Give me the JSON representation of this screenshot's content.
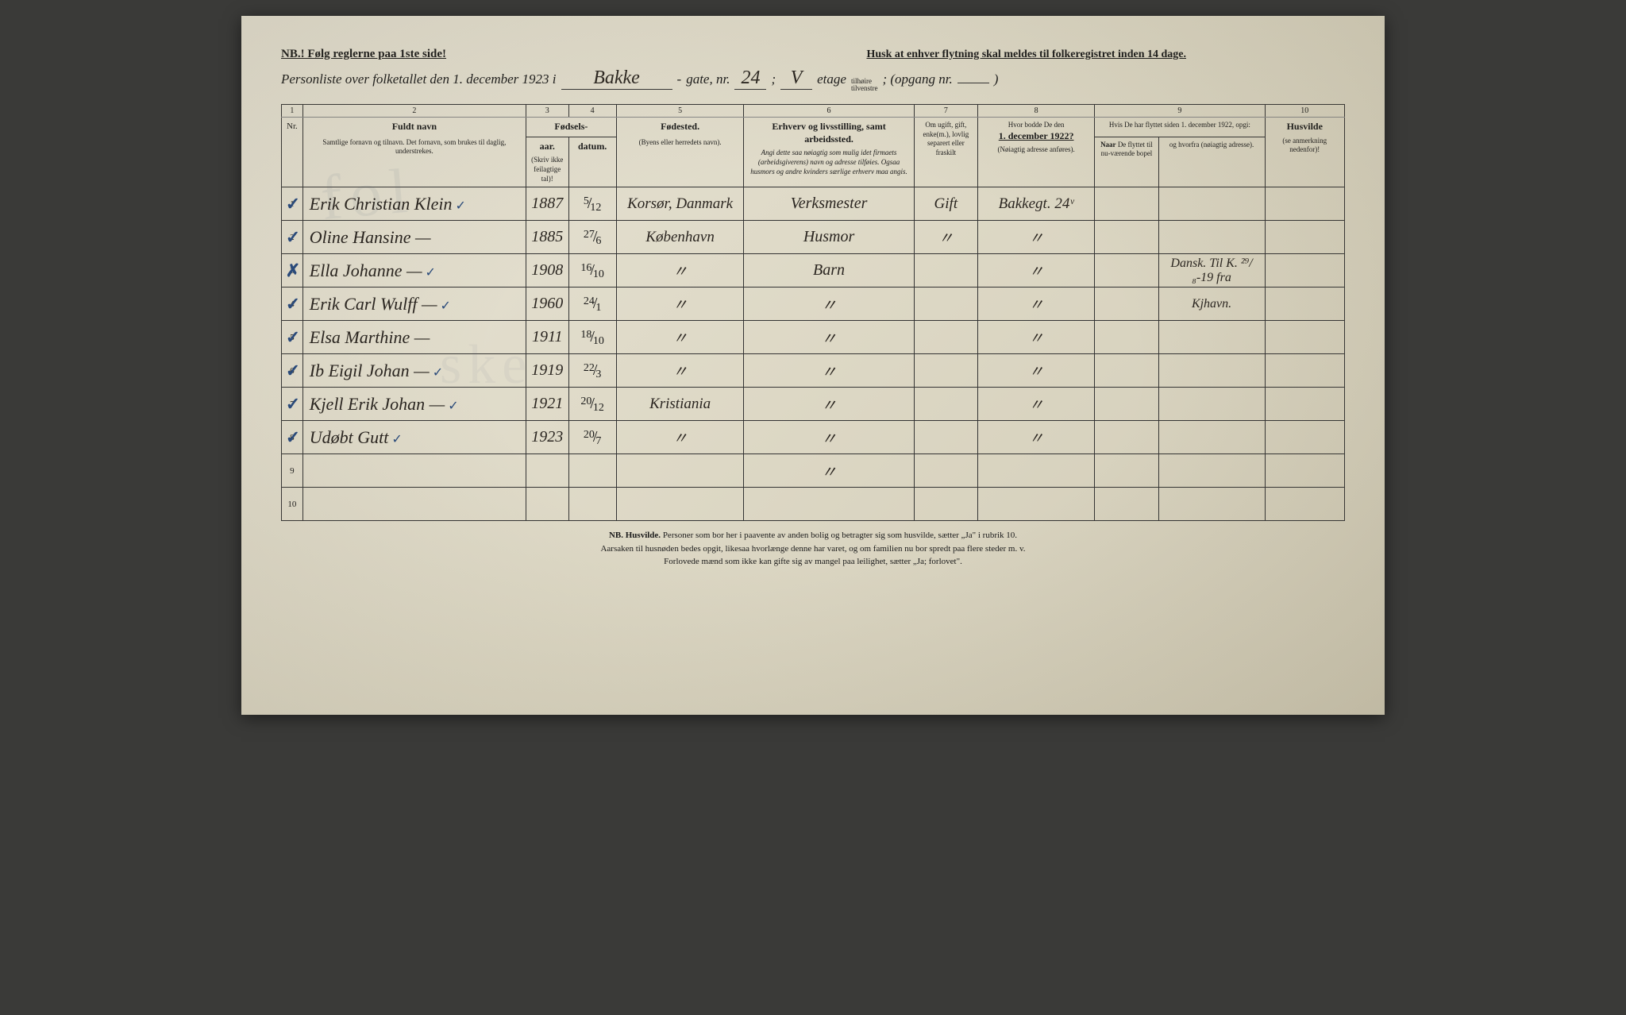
{
  "header": {
    "nb_text": "NB.! Følg reglerne paa 1ste side!",
    "reminder": "Husk at enhver flytning skal meldes til folkeregistret inden 14 dage.",
    "title_prefix": "Personliste over folketallet den 1. december 1923 i",
    "street_name": "Bakke",
    "gate_label": "gate, nr.",
    "gate_nr": "24",
    "semicolon": ";",
    "etage": "V",
    "etage_label": "etage",
    "side_top": "tilhøire",
    "side_bottom": "tilvenstre",
    "opgang_label": "; (opgang nr.",
    "opgang_nr": "",
    "closing": ")"
  },
  "columns": {
    "c1": "1",
    "c2": "2",
    "c3": "3",
    "c4": "4",
    "c5": "5",
    "c6": "6",
    "c7": "7",
    "c8": "8",
    "c9": "9",
    "c10": "10",
    "nr": "Nr.",
    "fuldt_navn": "Fuldt navn",
    "fuldt_navn_sub": "Samtlige fornavn og tilnavn. Det fornavn, som brukes til daglig, understrekes.",
    "fodsels": "Fødsels-",
    "aar": "aar.",
    "datum": "datum.",
    "skriv_ikke": "(Skriv ikke feilagtige tal)!",
    "fodested": "Fødested.",
    "fodested_sub": "(Byens eller herredets navn).",
    "erhverv": "Erhverv og livsstilling, samt arbeidssted.",
    "erhverv_sub": "Angi dette saa nøiagtig som mulig idet firmaets (arbeidsgiverens) navn og adresse tilføies. Ogsaa husmors og andre kvinders særlige erhverv maa angis.",
    "om_ugift": "Om ugift, gift, enke(m.), lovlig separert eller fraskilt",
    "hvor_bodde": "Hvor bodde De den",
    "hvor_bodde_date": "1. december 1922?",
    "hvor_bodde_sub": "(Nøiagtig adresse anføres).",
    "hvis_flyttet": "Hvis De har flyttet siden 1. december 1922, opgi:",
    "naar": "Naar De flyttet til nu-værende bopel",
    "hvorfra": "og hvorfra (nøiagtig adresse).",
    "husvilde": "Husvilde",
    "husvilde_sub": "(se anmerkning nedenfor)!"
  },
  "rows": [
    {
      "nr": "1",
      "mark": "✓",
      "name": "Erik Christian Klein",
      "name_mark": "✓",
      "year": "1887",
      "date_num": "5",
      "date_den": "12",
      "birthplace": "Korsør, Danmark",
      "occupation": "Verksmester",
      "marital": "Gift",
      "address_1922": "Bakkegt. 24ᵛ",
      "moved_when": "",
      "moved_from": "",
      "husvilde": ""
    },
    {
      "nr": "2",
      "mark": "✓",
      "name": "Oline Hansine    —",
      "name_mark": "",
      "year": "1885",
      "date_num": "27",
      "date_den": "6",
      "birthplace": "København",
      "occupation": "Husmor",
      "marital": "〃",
      "address_1922": "〃",
      "moved_when": "",
      "moved_from": "",
      "husvilde": ""
    },
    {
      "nr": "3",
      "mark": "✗",
      "name": "Ella Johanne    —",
      "name_mark": "✓",
      "year": "1908",
      "date_num": "16",
      "date_den": "10",
      "birthplace": "〃",
      "occupation": "Barn",
      "marital": "",
      "address_1922": "〃",
      "moved_when": "",
      "moved_from": "Dansk. Til K. ²⁹/₈-19 fra",
      "husvilde": ""
    },
    {
      "nr": "4",
      "mark": "✓",
      "name": "Erik Carl Wulff  —",
      "name_mark": "✓",
      "year": "1960",
      "date_num": "24",
      "date_den": "1",
      "birthplace": "〃",
      "occupation": "〃",
      "marital": "",
      "address_1922": "〃",
      "moved_when": "",
      "moved_from": "Kjhavn.",
      "husvilde": ""
    },
    {
      "nr": "5",
      "mark": "✓",
      "name": "Elsa Marthine   —",
      "name_mark": "",
      "year": "1911",
      "date_num": "18",
      "date_den": "10",
      "birthplace": "〃",
      "occupation": "〃",
      "marital": "",
      "address_1922": "〃",
      "moved_when": "",
      "moved_from": "",
      "husvilde": ""
    },
    {
      "nr": "6",
      "mark": "✓",
      "name": "Ib Eigil Johan   —",
      "name_mark": "✓",
      "year": "1919",
      "date_num": "22",
      "date_den": "3",
      "birthplace": "〃",
      "occupation": "〃",
      "marital": "",
      "address_1922": "〃",
      "moved_when": "",
      "moved_from": "",
      "husvilde": ""
    },
    {
      "nr": "7",
      "mark": "✓",
      "name": "Kjell Erik Johan —",
      "name_mark": "✓",
      "year": "1921",
      "date_num": "20",
      "date_den": "12",
      "birthplace": "Kristiania",
      "occupation": "〃",
      "marital": "",
      "address_1922": "〃",
      "moved_when": "",
      "moved_from": "",
      "husvilde": ""
    },
    {
      "nr": "8",
      "mark": "✓",
      "name": "Udøbt Gutt",
      "name_mark": "✓",
      "year": "1923",
      "date_num": "20",
      "date_den": "7",
      "birthplace": "〃",
      "occupation": "〃",
      "marital": "",
      "address_1922": "〃",
      "moved_when": "",
      "moved_from": "",
      "husvilde": ""
    },
    {
      "nr": "9",
      "mark": "",
      "name": "",
      "name_mark": "",
      "year": "",
      "date_num": "",
      "date_den": "",
      "birthplace": "",
      "occupation": "〃",
      "marital": "",
      "address_1922": "",
      "moved_when": "",
      "moved_from": "",
      "husvilde": ""
    },
    {
      "nr": "10",
      "mark": "",
      "name": "",
      "name_mark": "",
      "year": "",
      "date_num": "",
      "date_den": "",
      "birthplace": "",
      "occupation": "",
      "marital": "",
      "address_1922": "",
      "moved_when": "",
      "moved_from": "",
      "husvilde": ""
    }
  ],
  "footer": {
    "line1_nb": "NB. Husvilde.",
    "line1": " Personer som bor her i paavente av anden bolig og betragter sig som husvilde, sætter „Ja\" i rubrik 10.",
    "line2": "Aarsaken til husnøden bedes opgit, likesaa hvorlænge denne har varet, og om familien nu bor spredt paa flere steder m. v.",
    "line3": "Forlovede mænd som ikke kan gifte sig av mangel paa leilighet, sætter „Ja; forlovet\"."
  }
}
